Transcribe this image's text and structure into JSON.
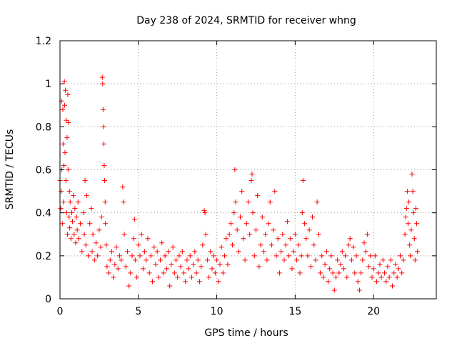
{
  "chart_data": {
    "type": "scatter",
    "title": "Day 238 of 2024, SRMTID for receiver whng",
    "xlabel": "GPS time / hours",
    "ylabel": "SRMTID / TECUs",
    "xlim": [
      0,
      24
    ],
    "ylim": [
      0,
      1.2
    ],
    "xticks": [
      0,
      5,
      10,
      15,
      20
    ],
    "xtick_labels": [
      "0",
      "5",
      "10",
      "15",
      "20"
    ],
    "yticks": [
      0,
      0.2,
      0.4,
      0.6,
      0.8,
      1.0,
      1.2
    ],
    "ytick_labels": [
      "0",
      "0.2",
      "0.4",
      "0.6",
      "0.8",
      "1",
      "1.2"
    ],
    "grid": true,
    "marker": "+",
    "color": "#ff0000",
    "series": [
      {
        "name": "SRMTID",
        "points": [
          [
            0.0,
            0.55
          ],
          [
            0.05,
            0.42
          ],
          [
            0.08,
            0.5
          ],
          [
            0.1,
            0.92
          ],
          [
            0.12,
            0.6
          ],
          [
            0.15,
            0.35
          ],
          [
            0.18,
            0.88
          ],
          [
            0.2,
            0.72
          ],
          [
            0.22,
            0.45
          ],
          [
            0.25,
            0.62
          ],
          [
            0.28,
            1.01
          ],
          [
            0.3,
            0.9
          ],
          [
            0.32,
            0.68
          ],
          [
            0.35,
            0.97
          ],
          [
            0.38,
            0.55
          ],
          [
            0.4,
            0.83
          ],
          [
            0.42,
            0.4
          ],
          [
            0.45,
            0.75
          ],
          [
            0.48,
            0.3
          ],
          [
            0.5,
            0.95
          ],
          [
            0.52,
            0.6
          ],
          [
            0.55,
            0.82
          ],
          [
            0.58,
            0.38
          ],
          [
            0.6,
            0.5
          ],
          [
            0.62,
            0.33
          ],
          [
            0.65,
            0.45
          ],
          [
            0.7,
            0.28
          ],
          [
            0.75,
            0.4
          ],
          [
            0.8,
            0.36
          ],
          [
            0.85,
            0.48
          ],
          [
            0.9,
            0.3
          ],
          [
            0.95,
            0.42
          ],
          [
            1.0,
            0.26
          ],
          [
            1.05,
            0.38
          ],
          [
            1.1,
            0.32
          ],
          [
            1.15,
            0.45
          ],
          [
            1.2,
            0.28
          ],
          [
            1.3,
            0.35
          ],
          [
            1.4,
            0.22
          ],
          [
            1.5,
            0.4
          ],
          [
            1.55,
            0.3
          ],
          [
            1.6,
            0.55
          ],
          [
            1.65,
            0.25
          ],
          [
            1.7,
            0.48
          ],
          [
            1.8,
            0.2
          ],
          [
            1.9,
            0.35
          ],
          [
            2.0,
            0.42
          ],
          [
            2.05,
            0.22
          ],
          [
            2.1,
            0.3
          ],
          [
            2.2,
            0.18
          ],
          [
            2.3,
            0.26
          ],
          [
            2.4,
            0.2
          ],
          [
            2.5,
            0.32
          ],
          [
            2.6,
            0.24
          ],
          [
            2.65,
            0.38
          ],
          [
            2.7,
            1.03
          ],
          [
            2.72,
            1.0
          ],
          [
            2.75,
            0.88
          ],
          [
            2.78,
            0.8
          ],
          [
            2.8,
            0.72
          ],
          [
            2.82,
            0.62
          ],
          [
            2.85,
            0.55
          ],
          [
            2.88,
            0.45
          ],
          [
            2.9,
            0.35
          ],
          [
            2.95,
            0.25
          ],
          [
            3.0,
            0.15
          ],
          [
            3.1,
            0.12
          ],
          [
            3.2,
            0.18
          ],
          [
            3.3,
            0.22
          ],
          [
            3.4,
            0.1
          ],
          [
            3.5,
            0.16
          ],
          [
            3.6,
            0.24
          ],
          [
            3.7,
            0.14
          ],
          [
            3.8,
            0.2
          ],
          [
            3.9,
            0.18
          ],
          [
            4.0,
            0.52
          ],
          [
            4.05,
            0.45
          ],
          [
            4.1,
            0.3
          ],
          [
            4.2,
            0.15
          ],
          [
            4.3,
            0.22
          ],
          [
            4.4,
            0.06
          ],
          [
            4.5,
            0.12
          ],
          [
            4.6,
            0.2
          ],
          [
            4.7,
            0.28
          ],
          [
            4.75,
            0.37
          ],
          [
            4.8,
            0.18
          ],
          [
            4.9,
            0.1
          ],
          [
            5.0,
            0.25
          ],
          [
            5.1,
            0.2
          ],
          [
            5.2,
            0.3
          ],
          [
            5.3,
            0.14
          ],
          [
            5.4,
            0.22
          ],
          [
            5.5,
            0.18
          ],
          [
            5.6,
            0.28
          ],
          [
            5.7,
            0.12
          ],
          [
            5.8,
            0.2
          ],
          [
            5.9,
            0.08
          ],
          [
            6.0,
            0.24
          ],
          [
            6.1,
            0.16
          ],
          [
            6.2,
            0.22
          ],
          [
            6.3,
            0.1
          ],
          [
            6.4,
            0.18
          ],
          [
            6.5,
            0.26
          ],
          [
            6.6,
            0.12
          ],
          [
            6.7,
            0.2
          ],
          [
            6.8,
            0.14
          ],
          [
            6.9,
            0.22
          ],
          [
            7.0,
            0.06
          ],
          [
            7.1,
            0.16
          ],
          [
            7.2,
            0.24
          ],
          [
            7.3,
            0.12
          ],
          [
            7.4,
            0.18
          ],
          [
            7.5,
            0.1
          ],
          [
            7.6,
            0.2
          ],
          [
            7.7,
            0.15
          ],
          [
            7.8,
            0.22
          ],
          [
            7.9,
            0.12
          ],
          [
            8.0,
            0.08
          ],
          [
            8.1,
            0.18
          ],
          [
            8.2,
            0.14
          ],
          [
            8.3,
            0.2
          ],
          [
            8.4,
            0.1
          ],
          [
            8.5,
            0.16
          ],
          [
            8.6,
            0.22
          ],
          [
            8.7,
            0.12
          ],
          [
            8.8,
            0.18
          ],
          [
            8.9,
            0.08
          ],
          [
            9.0,
            0.15
          ],
          [
            9.1,
            0.25
          ],
          [
            9.2,
            0.41
          ],
          [
            9.25,
            0.4
          ],
          [
            9.3,
            0.3
          ],
          [
            9.4,
            0.18
          ],
          [
            9.5,
            0.1
          ],
          [
            9.6,
            0.22
          ],
          [
            9.7,
            0.14
          ],
          [
            9.8,
            0.2
          ],
          [
            9.9,
            0.12
          ],
          [
            10.0,
            0.18
          ],
          [
            10.1,
            0.08
          ],
          [
            10.2,
            0.16
          ],
          [
            10.3,
            0.24
          ],
          [
            10.4,
            0.12
          ],
          [
            10.5,
            0.2
          ],
          [
            10.6,
            0.28
          ],
          [
            10.7,
            0.16
          ],
          [
            10.8,
            0.3
          ],
          [
            10.9,
            0.35
          ],
          [
            11.0,
            0.25
          ],
          [
            11.1,
            0.4
          ],
          [
            11.15,
            0.6
          ],
          [
            11.2,
            0.45
          ],
          [
            11.3,
            0.32
          ],
          [
            11.4,
            0.22
          ],
          [
            11.5,
            0.38
          ],
          [
            11.6,
            0.5
          ],
          [
            11.7,
            0.28
          ],
          [
            11.8,
            0.18
          ],
          [
            11.9,
            0.35
          ],
          [
            12.0,
            0.45
          ],
          [
            12.1,
            0.3
          ],
          [
            12.2,
            0.55
          ],
          [
            12.25,
            0.58
          ],
          [
            12.3,
            0.4
          ],
          [
            12.4,
            0.2
          ],
          [
            12.5,
            0.32
          ],
          [
            12.6,
            0.48
          ],
          [
            12.7,
            0.15
          ],
          [
            12.8,
            0.25
          ],
          [
            12.9,
            0.38
          ],
          [
            13.0,
            0.22
          ],
          [
            13.1,
            0.3
          ],
          [
            13.2,
            0.18
          ],
          [
            13.3,
            0.35
          ],
          [
            13.4,
            0.45
          ],
          [
            13.5,
            0.25
          ],
          [
            13.6,
            0.32
          ],
          [
            13.7,
            0.5
          ],
          [
            13.8,
            0.2
          ],
          [
            13.9,
            0.28
          ],
          [
            14.0,
            0.12
          ],
          [
            14.1,
            0.22
          ],
          [
            14.2,
            0.3
          ],
          [
            14.3,
            0.18
          ],
          [
            14.4,
            0.25
          ],
          [
            14.5,
            0.36
          ],
          [
            14.6,
            0.2
          ],
          [
            14.7,
            0.28
          ],
          [
            14.8,
            0.14
          ],
          [
            14.9,
            0.22
          ],
          [
            15.0,
            0.3
          ],
          [
            15.1,
            0.18
          ],
          [
            15.2,
            0.25
          ],
          [
            15.3,
            0.12
          ],
          [
            15.4,
            0.2
          ],
          [
            15.45,
            0.4
          ],
          [
            15.5,
            0.55
          ],
          [
            15.6,
            0.35
          ],
          [
            15.7,
            0.28
          ],
          [
            15.8,
            0.2
          ],
          [
            15.9,
            0.32
          ],
          [
            16.0,
            0.15
          ],
          [
            16.1,
            0.38
          ],
          [
            16.2,
            0.25
          ],
          [
            16.3,
            0.18
          ],
          [
            16.4,
            0.45
          ],
          [
            16.5,
            0.3
          ],
          [
            16.6,
            0.12
          ],
          [
            16.7,
            0.2
          ],
          [
            16.8,
            0.1
          ],
          [
            16.9,
            0.16
          ],
          [
            17.0,
            0.22
          ],
          [
            17.1,
            0.08
          ],
          [
            17.2,
            0.14
          ],
          [
            17.3,
            0.2
          ],
          [
            17.4,
            0.12
          ],
          [
            17.5,
            0.04
          ],
          [
            17.6,
            0.1
          ],
          [
            17.7,
            0.18
          ],
          [
            17.8,
            0.12
          ],
          [
            17.9,
            0.16
          ],
          [
            18.0,
            0.22
          ],
          [
            18.1,
            0.14
          ],
          [
            18.2,
            0.2
          ],
          [
            18.3,
            0.1
          ],
          [
            18.4,
            0.25
          ],
          [
            18.5,
            0.28
          ],
          [
            18.6,
            0.18
          ],
          [
            18.7,
            0.24
          ],
          [
            18.8,
            0.12
          ],
          [
            18.9,
            0.2
          ],
          [
            19.0,
            0.08
          ],
          [
            19.1,
            0.04
          ],
          [
            19.2,
            0.12
          ],
          [
            19.3,
            0.18
          ],
          [
            19.4,
            0.26
          ],
          [
            19.5,
            0.22
          ],
          [
            19.6,
            0.3
          ],
          [
            19.7,
            0.15
          ],
          [
            19.8,
            0.2
          ],
          [
            19.9,
            0.1
          ],
          [
            20.0,
            0.14
          ],
          [
            20.1,
            0.2
          ],
          [
            20.2,
            0.08
          ],
          [
            20.3,
            0.12
          ],
          [
            20.4,
            0.16
          ],
          [
            20.5,
            0.1
          ],
          [
            20.6,
            0.18
          ],
          [
            20.7,
            0.12
          ],
          [
            20.8,
            0.08
          ],
          [
            20.9,
            0.15
          ],
          [
            21.0,
            0.1
          ],
          [
            21.1,
            0.18
          ],
          [
            21.2,
            0.06
          ],
          [
            21.3,
            0.12
          ],
          [
            21.4,
            0.16
          ],
          [
            21.5,
            0.1
          ],
          [
            21.6,
            0.14
          ],
          [
            21.7,
            0.2
          ],
          [
            21.8,
            0.12
          ],
          [
            21.9,
            0.18
          ],
          [
            22.0,
            0.3
          ],
          [
            22.05,
            0.38
          ],
          [
            22.1,
            0.42
          ],
          [
            22.15,
            0.5
          ],
          [
            22.2,
            0.35
          ],
          [
            22.25,
            0.45
          ],
          [
            22.3,
            0.25
          ],
          [
            22.35,
            0.2
          ],
          [
            22.4,
            0.32
          ],
          [
            22.45,
            0.58
          ],
          [
            22.5,
            0.5
          ],
          [
            22.55,
            0.4
          ],
          [
            22.6,
            0.28
          ],
          [
            22.65,
            0.18
          ],
          [
            22.7,
            0.42
          ],
          [
            22.75,
            0.35
          ],
          [
            22.8,
            0.22
          ]
        ]
      }
    ]
  }
}
